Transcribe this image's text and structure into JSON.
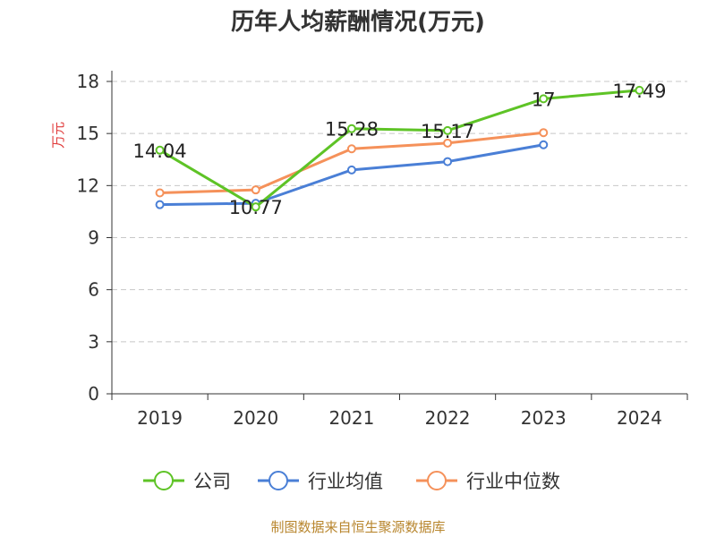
{
  "chart_data": {
    "type": "line",
    "title": "历年人均薪酬情况(万元)",
    "ylabel": "万元",
    "xlabel": "",
    "categories": [
      "2019",
      "2020",
      "2021",
      "2022",
      "2023",
      "2024"
    ],
    "ylim": [
      0,
      18
    ],
    "yticks": [
      0,
      3,
      6,
      9,
      12,
      15,
      18
    ],
    "grid": true,
    "legend_position": "bottom",
    "series": [
      {
        "name": "公司",
        "color": "#5ec326",
        "values": [
          14.04,
          10.77,
          15.28,
          15.17,
          17,
          17.49
        ],
        "labels": [
          "14.04",
          "10.77",
          "15.28",
          "15.17",
          "17",
          "17.49"
        ]
      },
      {
        "name": "行业均值",
        "color": "#4a7fd6",
        "values": [
          10.9,
          10.98,
          12.9,
          13.38,
          14.35,
          null
        ]
      },
      {
        "name": "行业中位数",
        "color": "#f5915a",
        "values": [
          11.58,
          11.75,
          14.12,
          14.45,
          15.05,
          null
        ]
      }
    ]
  },
  "source_note": "制图数据来自恒生聚源数据库"
}
